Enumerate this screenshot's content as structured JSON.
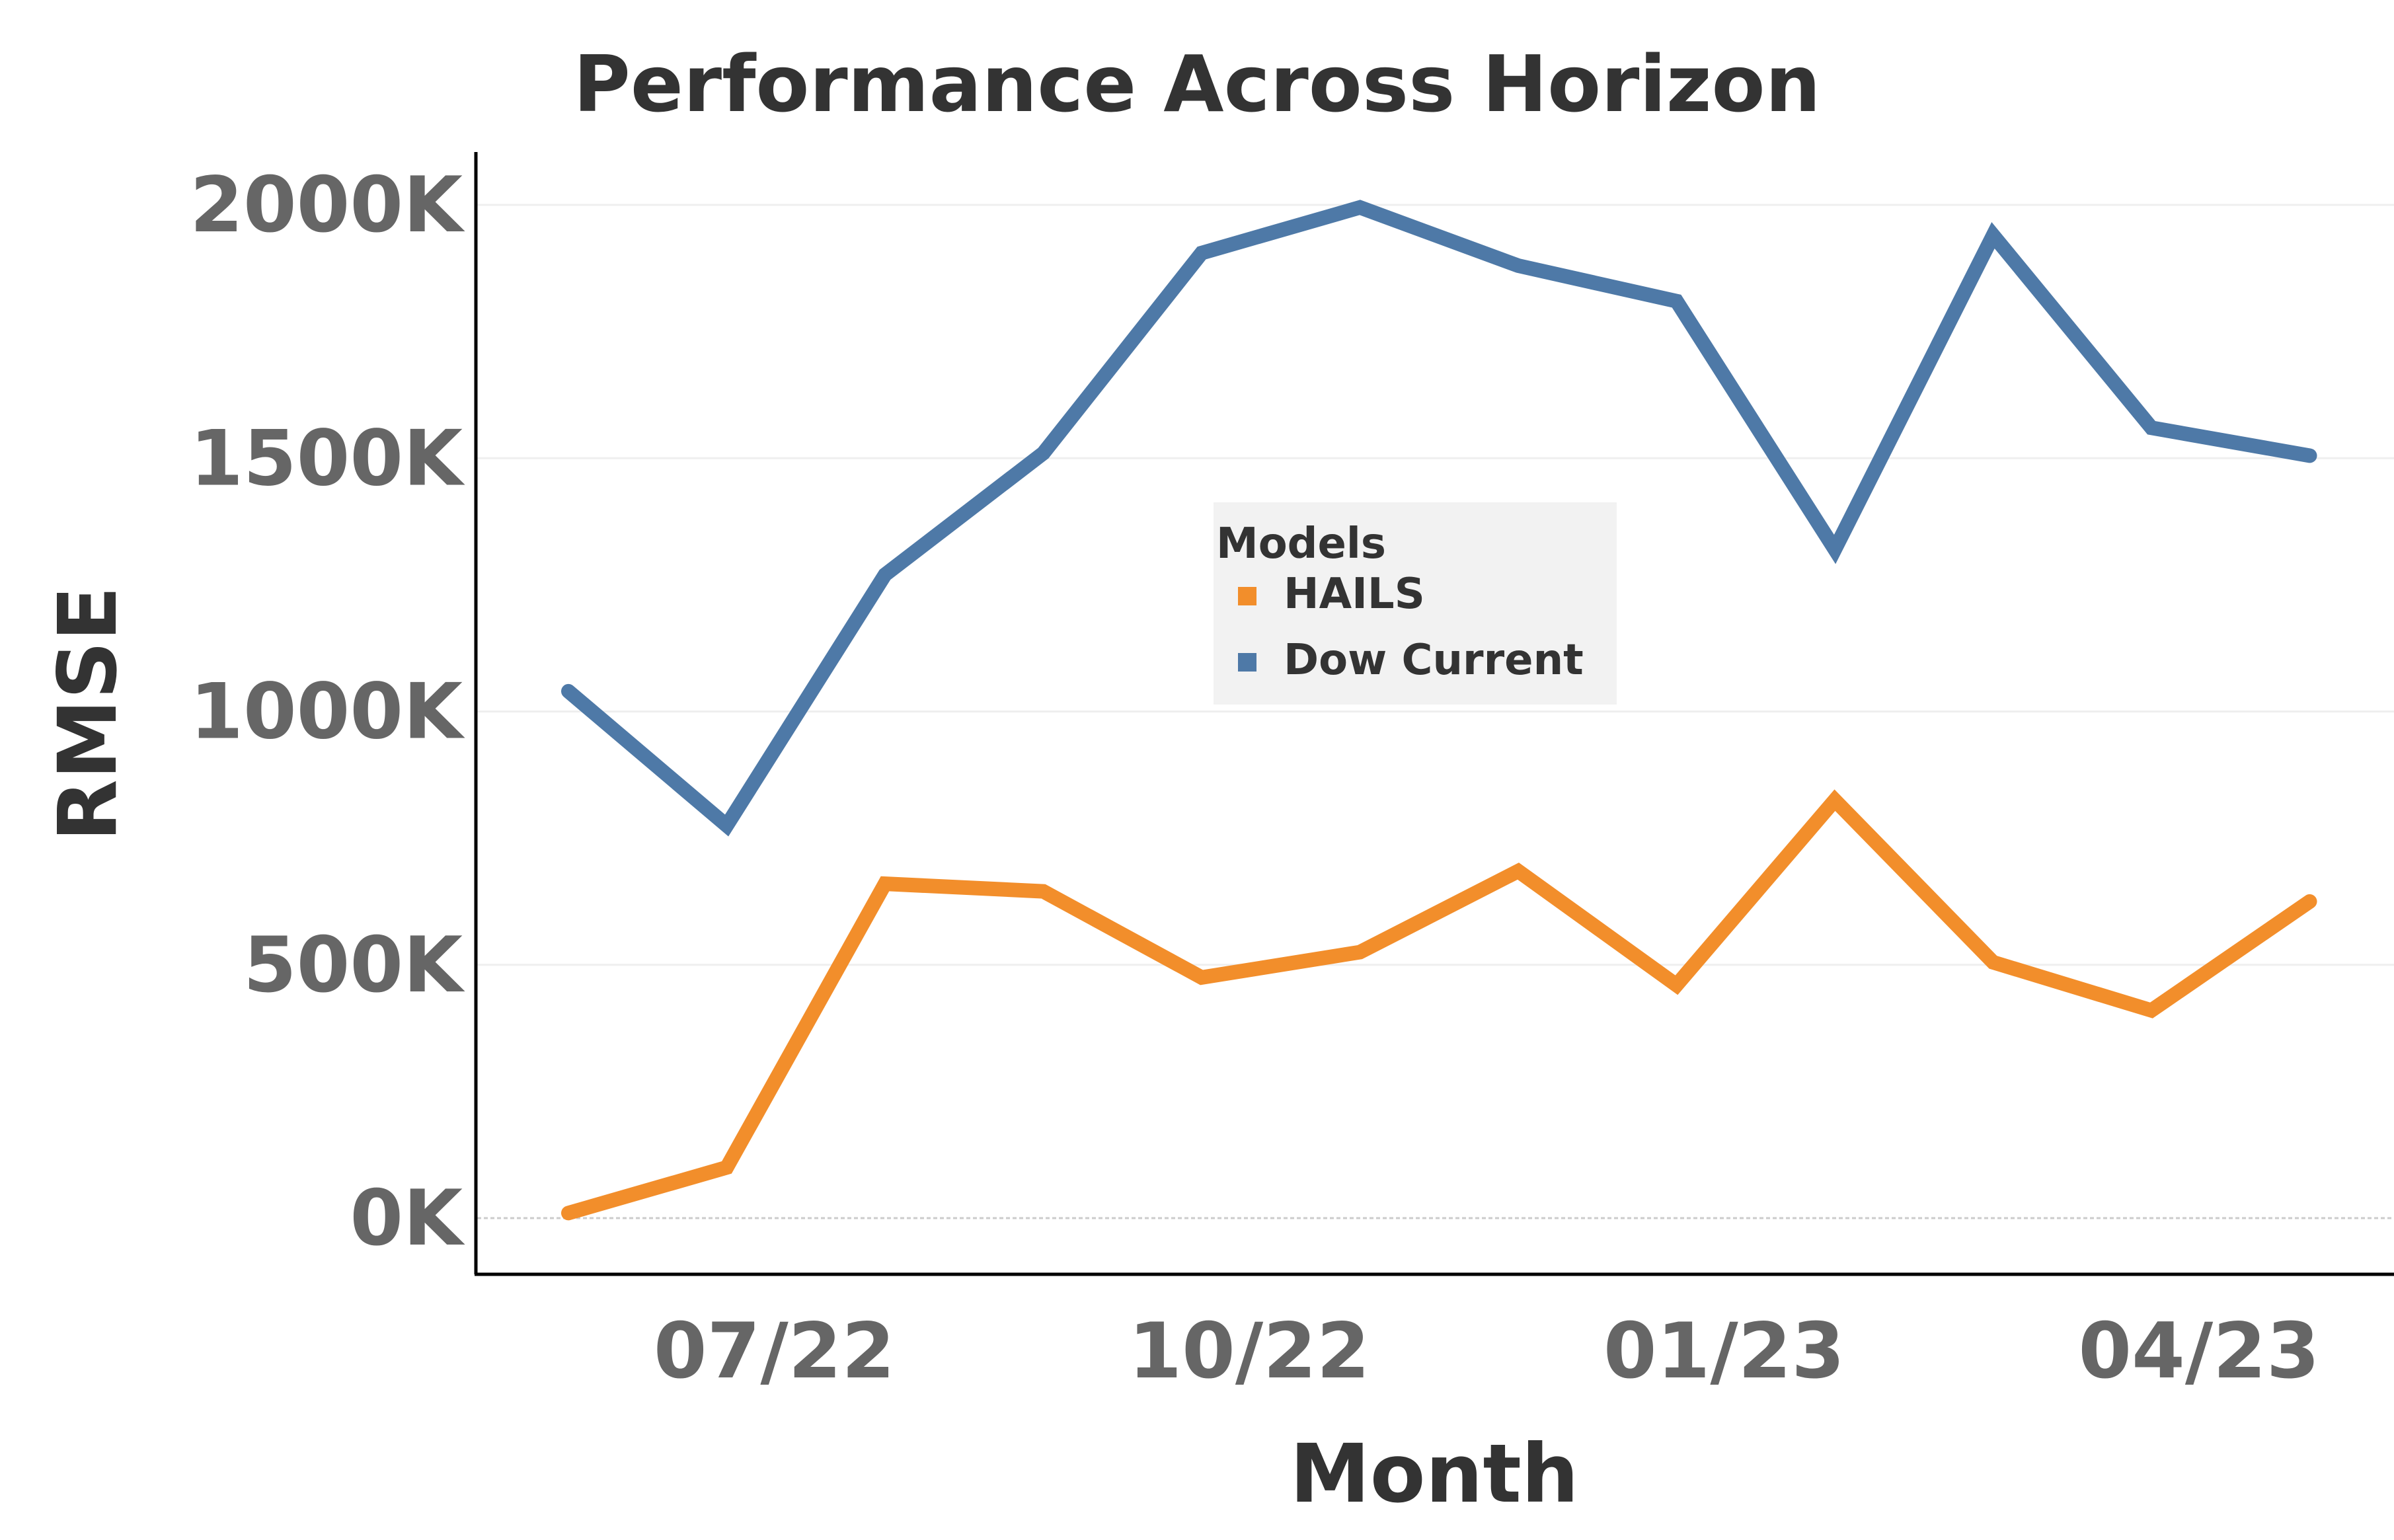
{
  "chart_data": {
    "type": "line",
    "title": "Performance Across Horizon",
    "xlabel": "Month",
    "ylabel": "RMSE",
    "x": [
      "2022-06",
      "2022-07",
      "2022-08",
      "2022-09",
      "2022-10",
      "2022-11",
      "2022-12",
      "2023-01",
      "2023-02",
      "2023-03",
      "2023-04",
      "2023-05"
    ],
    "x_ticks": [
      {
        "x": "2022-07",
        "label": "07/22"
      },
      {
        "x": "2022-10",
        "label": "10/22"
      },
      {
        "x": "2023-01",
        "label": "01/23"
      },
      {
        "x": "2023-04",
        "label": "04/23"
      }
    ],
    "y_ticks": [
      {
        "value": 0,
        "label": "0K"
      },
      {
        "value": 500000,
        "label": "500K"
      },
      {
        "value": 1000000,
        "label": "1000K"
      },
      {
        "value": 1500000,
        "label": "1500K"
      },
      {
        "value": 2000000,
        "label": "2000K"
      }
    ],
    "ylim": [
      -100000,
      2100000
    ],
    "grid": "horizontal",
    "legend": {
      "title": "Models",
      "placement": "center"
    },
    "series": [
      {
        "name": "HAILS",
        "color": "#f28e2b",
        "values": [
          10000,
          100000,
          660000,
          645000,
          475000,
          525000,
          685000,
          460000,
          825000,
          505000,
          410000,
          625000
        ]
      },
      {
        "name": "Dow Current",
        "color": "#4e79a7",
        "values": [
          1040000,
          775000,
          1270000,
          1510000,
          1905000,
          1995000,
          1880000,
          1810000,
          1320000,
          1940000,
          1560000,
          1505000
        ]
      }
    ]
  }
}
